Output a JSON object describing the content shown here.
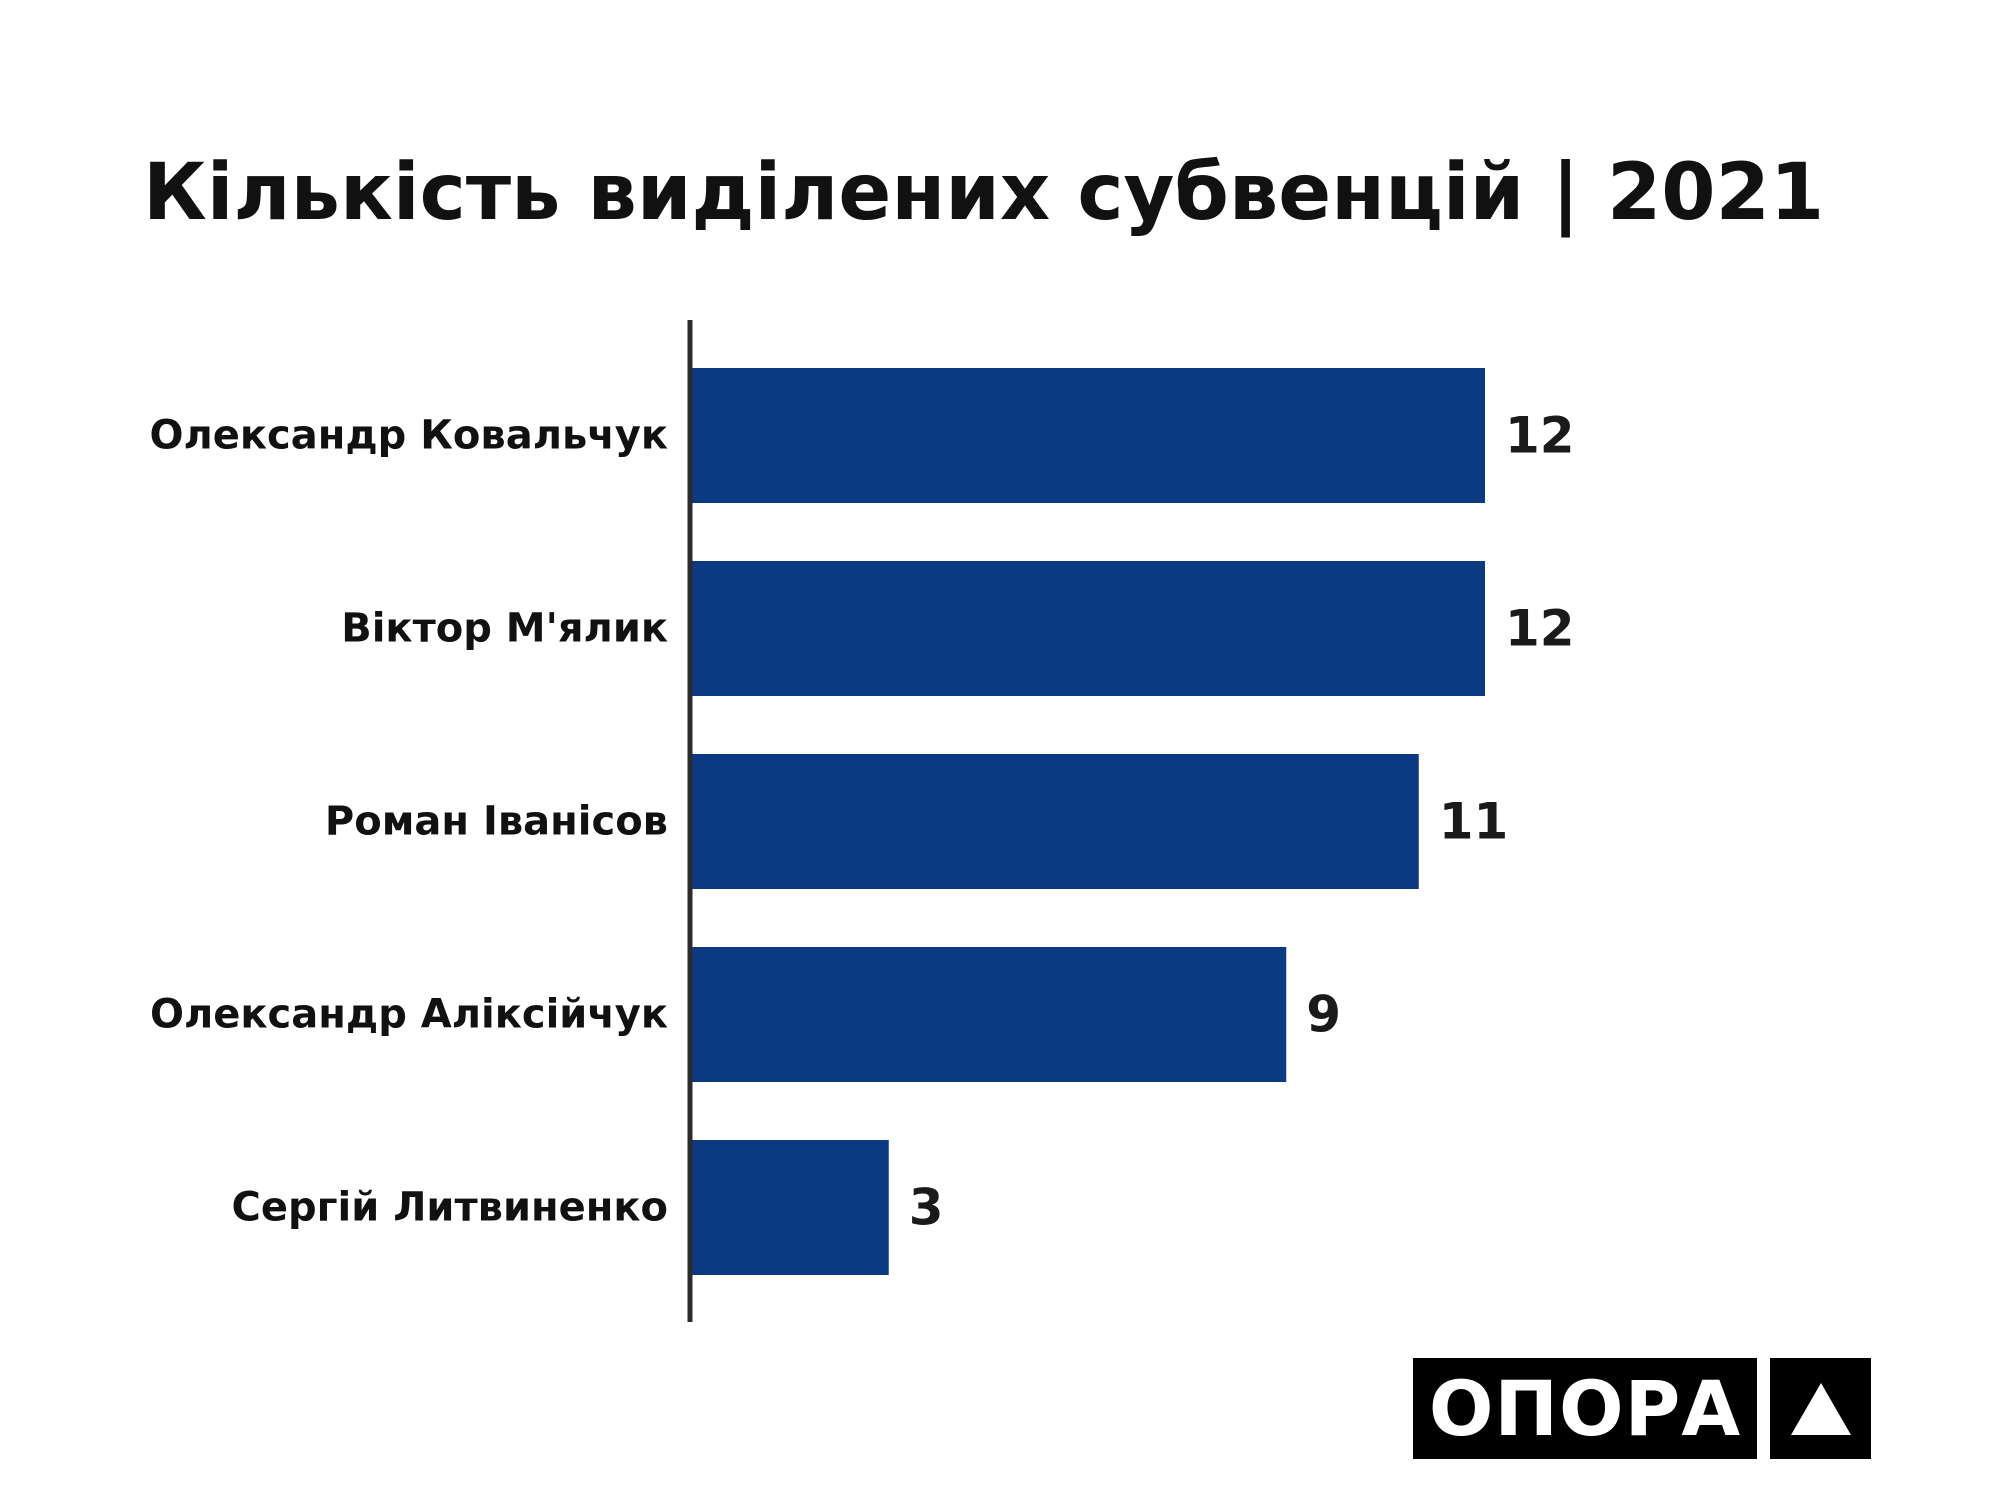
{
  "chart_data": {
    "type": "bar",
    "orientation": "horizontal",
    "title": "Кількість виділених субвенцій | 2021",
    "categories": [
      "Олександр Ковальчук",
      "Віктор М'ялик",
      "Роман Іванісов",
      "Олександр Аліксійчук",
      "Сергій Литвиненко"
    ],
    "values": [
      12,
      12,
      11,
      9,
      3
    ],
    "data_labels": [
      "12",
      "12",
      "11",
      "9",
      "3"
    ],
    "xlim": [
      0,
      12
    ],
    "grid": false,
    "legend": "none",
    "bar_color": "#0b3a82",
    "axis_color": "#2b2b2b"
  },
  "logo": {
    "text": "ОПОРА",
    "mark": "triangle-logo-icon"
  }
}
